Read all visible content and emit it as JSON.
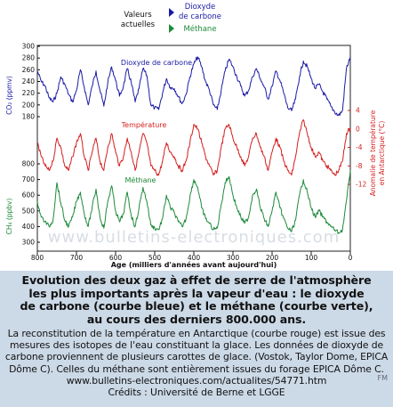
{
  "legend": {
    "current_values_label": [
      "Valeurs",
      "actuelles"
    ],
    "co2_label": [
      "Dioxyde",
      "de carbone"
    ],
    "ch4_label": "Méthane",
    "co2_color": "#1a1aa6",
    "ch4_color": "#1e8a3a",
    "temp_color": "#d41e1e"
  },
  "chart_data": {
    "type": "line",
    "xlabel": "Age (milliers d'années avant aujourd'hui)",
    "xlim": [
      800,
      0
    ],
    "x_ticks": [
      "800",
      "700",
      "600",
      "500",
      "400",
      "300",
      "200",
      "100",
      "0"
    ],
    "watermark": "www.bulletins-electroniques.com",
    "axes": {
      "co2": {
        "ylabel": "CO₂ (ppmv)",
        "ylim": [
          180,
          300
        ],
        "ticks": [
          "300",
          "280",
          "260",
          "240",
          "220",
          "200",
          "180"
        ]
      },
      "temperature": {
        "ylabel": [
          "Anomalie de température",
          "en Antarctique (°C)"
        ],
        "ylim": [
          -12,
          4
        ],
        "ticks": [
          "4",
          "0",
          "-4",
          "-8",
          "-12"
        ]
      },
      "ch4": {
        "ylabel": "CH₄ (ppbv)",
        "ylim": [
          300,
          800
        ],
        "ticks": [
          "800",
          "700",
          "600",
          "500",
          "400",
          "300"
        ]
      }
    },
    "series": [
      {
        "name": "Dioxyde de carbone",
        "axis": "co2",
        "color": "#1a1aa6",
        "x": [
          800,
          790,
          780,
          770,
          760,
          750,
          740,
          730,
          720,
          710,
          700,
          690,
          680,
          670,
          660,
          650,
          640,
          630,
          620,
          610,
          600,
          590,
          580,
          570,
          560,
          550,
          540,
          530,
          520,
          510,
          500,
          490,
          480,
          470,
          460,
          450,
          440,
          430,
          420,
          410,
          400,
          390,
          380,
          370,
          360,
          350,
          340,
          330,
          320,
          310,
          300,
          290,
          280,
          270,
          260,
          250,
          240,
          230,
          220,
          210,
          200,
          190,
          180,
          170,
          160,
          150,
          140,
          130,
          120,
          110,
          100,
          90,
          80,
          70,
          60,
          50,
          40,
          30,
          20,
          10,
          0
        ],
        "values": [
          258,
          240,
          232,
          212,
          205,
          220,
          248,
          235,
          218,
          205,
          225,
          260,
          230,
          200,
          232,
          258,
          225,
          198,
          238,
          265,
          242,
          215,
          232,
          262,
          238,
          205,
          228,
          262,
          250,
          200,
          195,
          192,
          220,
          245,
          230,
          228,
          215,
          202,
          218,
          248,
          270,
          282,
          265,
          240,
          225,
          200,
          192,
          225,
          258,
          278,
          265,
          248,
          232,
          215,
          225,
          248,
          262,
          245,
          230,
          210,
          232,
          258,
          242,
          220,
          195,
          190,
          210,
          248,
          275,
          265,
          245,
          228,
          235,
          222,
          210,
          198,
          188,
          182,
          190,
          262,
          282
        ]
      },
      {
        "name": "Température",
        "axis": "temperature",
        "color": "#d41e1e",
        "x": [
          800,
          790,
          780,
          770,
          760,
          750,
          740,
          730,
          720,
          710,
          700,
          690,
          680,
          670,
          660,
          650,
          640,
          630,
          620,
          610,
          600,
          590,
          580,
          570,
          560,
          550,
          540,
          530,
          520,
          510,
          500,
          490,
          480,
          470,
          460,
          450,
          440,
          430,
          420,
          410,
          400,
          390,
          380,
          370,
          360,
          350,
          340,
          330,
          320,
          310,
          300,
          290,
          280,
          270,
          260,
          250,
          240,
          230,
          220,
          210,
          200,
          190,
          180,
          170,
          160,
          150,
          140,
          130,
          120,
          110,
          100,
          90,
          80,
          70,
          60,
          50,
          40,
          30,
          20,
          10,
          0
        ],
        "values": [
          -3,
          -6,
          -8,
          -9,
          -7,
          -2,
          -4,
          -8,
          -9,
          -6,
          -3,
          -1,
          -6,
          -9,
          -5,
          -2,
          -7,
          -9,
          -4,
          -1,
          -5,
          -8,
          -6,
          -2,
          -5,
          -9,
          -5,
          -1,
          -3,
          -8,
          -9,
          -10,
          -7,
          -3,
          -5,
          -6,
          -8,
          -9,
          -7,
          -3,
          1,
          0,
          -3,
          -6,
          -8,
          -10,
          -9,
          -4,
          0,
          1,
          -2,
          -4,
          -6,
          -8,
          -6,
          -2,
          -1,
          -4,
          -6,
          -9,
          -5,
          -2,
          -4,
          -7,
          -9,
          -10,
          -6,
          -1,
          2,
          -1,
          -4,
          -6,
          -5,
          -7,
          -8,
          -9,
          -10,
          -9,
          -7,
          -1,
          0
        ]
      },
      {
        "name": "Méthane",
        "axis": "ch4",
        "color": "#1e8a3a",
        "x": [
          800,
          790,
          780,
          770,
          760,
          750,
          740,
          730,
          720,
          710,
          700,
          690,
          680,
          670,
          660,
          650,
          640,
          630,
          620,
          610,
          600,
          590,
          580,
          570,
          560,
          550,
          540,
          530,
          520,
          510,
          500,
          490,
          480,
          470,
          460,
          450,
          440,
          430,
          420,
          410,
          400,
          390,
          380,
          370,
          360,
          350,
          340,
          330,
          320,
          310,
          300,
          290,
          280,
          270,
          260,
          250,
          240,
          230,
          220,
          210,
          200,
          190,
          180,
          170,
          160,
          150,
          140,
          130,
          120,
          110,
          100,
          90,
          80,
          70,
          60,
          50,
          40,
          30,
          20,
          10,
          0
        ],
        "values": [
          560,
          460,
          430,
          400,
          440,
          680,
          550,
          440,
          400,
          460,
          560,
          620,
          480,
          400,
          520,
          640,
          460,
          390,
          560,
          660,
          500,
          430,
          480,
          620,
          470,
          400,
          520,
          650,
          560,
          410,
          390,
          380,
          450,
          600,
          520,
          490,
          430,
          400,
          450,
          590,
          700,
          650,
          520,
          450,
          420,
          380,
          390,
          540,
          680,
          720,
          600,
          520,
          460,
          420,
          460,
          600,
          640,
          520,
          450,
          400,
          500,
          620,
          520,
          450,
          390,
          370,
          440,
          600,
          700,
          620,
          520,
          460,
          500,
          460,
          430,
          400,
          380,
          360,
          380,
          560,
          760
        ]
      }
    ]
  },
  "series_labels": {
    "co2": "Dioxyde de carbone",
    "temperature": "Température",
    "ch4": "Méthane"
  },
  "caption": {
    "title_lines": [
      "Evolution des deux gaz à effet de serre de l'atmosphère",
      "les plus importants après la vapeur d'eau : le dioxyde",
      "de carbone (courbe bleue) et le méthane (courbe verte),",
      "au cours des derniers 800.000 ans."
    ],
    "body_lines": [
      "La reconstitution de la température en Antarctique (courbe rouge) est issue des",
      "mesures des isotopes de l'eau constituant la glace. Les données de dioxyde de",
      "carbone proviennent de plusieurs carottes de glace. (Vostok, Taylor Dome, EPICA",
      "Dôme C). Celles du méthane sont entièrement issues du forage EPICA Dôme C.",
      "www.bulletins-electroniques.com/actualites/54771.htm",
      "Crédits : Université de Berne et LGGE"
    ],
    "fm_mark": "FM"
  }
}
